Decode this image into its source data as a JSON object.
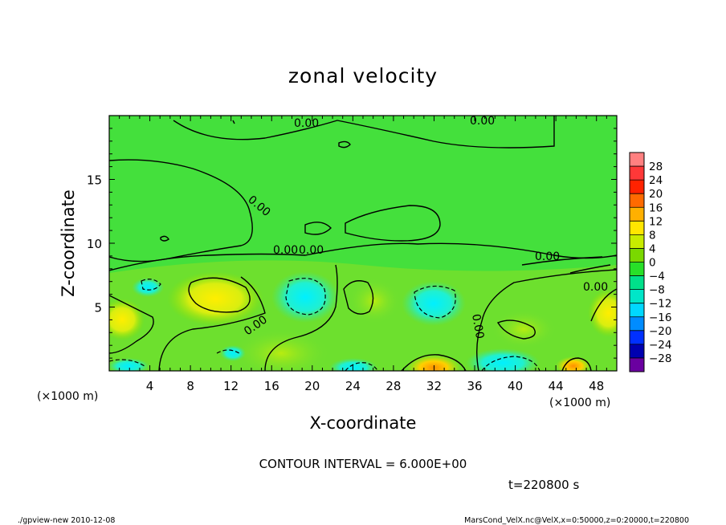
{
  "chart_data": {
    "type": "heatmap",
    "title": "zonal velocity",
    "xlabel": "X-coordinate",
    "ylabel": "Z-coordinate",
    "x_unit": "(×1000 m)",
    "z_unit": "(×1000 m)",
    "xlim": [
      0,
      50
    ],
    "ylim": [
      0,
      20
    ],
    "x_ticks": [
      4,
      8,
      12,
      16,
      20,
      24,
      28,
      32,
      36,
      40,
      44,
      48
    ],
    "y_ticks": [
      5,
      10,
      15
    ],
    "contour_interval_text": "CONTOUR INTERVAL = 6.000E+00",
    "contour_labels": [
      "0.00",
      "0.00",
      "0.00",
      "0.00",
      "0.00",
      "0.00",
      "0.00",
      "0.00",
      "0.00"
    ],
    "colorbar": {
      "levels": [
        28,
        24,
        20,
        16,
        12,
        8,
        4,
        0,
        -4,
        -8,
        -12,
        -16,
        -20,
        -24,
        -28
      ],
      "labels": [
        "28",
        "24",
        "20",
        "16",
        "12",
        "8",
        "4",
        "0",
        "−4",
        "−8",
        "−12",
        "−16",
        "−20",
        "−24",
        "−28"
      ],
      "colors": [
        "#ff8080",
        "#ff3838",
        "#ff2200",
        "#ff6a00",
        "#ffb000",
        "#ffe600",
        "#c8ec00",
        "#7ad800",
        "#28e028",
        "#00e08a",
        "#00e6c8",
        "#00d8ff",
        "#008cff",
        "#0030ff",
        "#0000b0",
        "#6a00a0"
      ]
    },
    "time_label": "t=220800 s"
  },
  "footer": {
    "left": "./gpview-new  2010-12-08",
    "right": "MarsCond_VelX.nc@VelX,x=0:50000,z=0:20000,t=220800"
  }
}
